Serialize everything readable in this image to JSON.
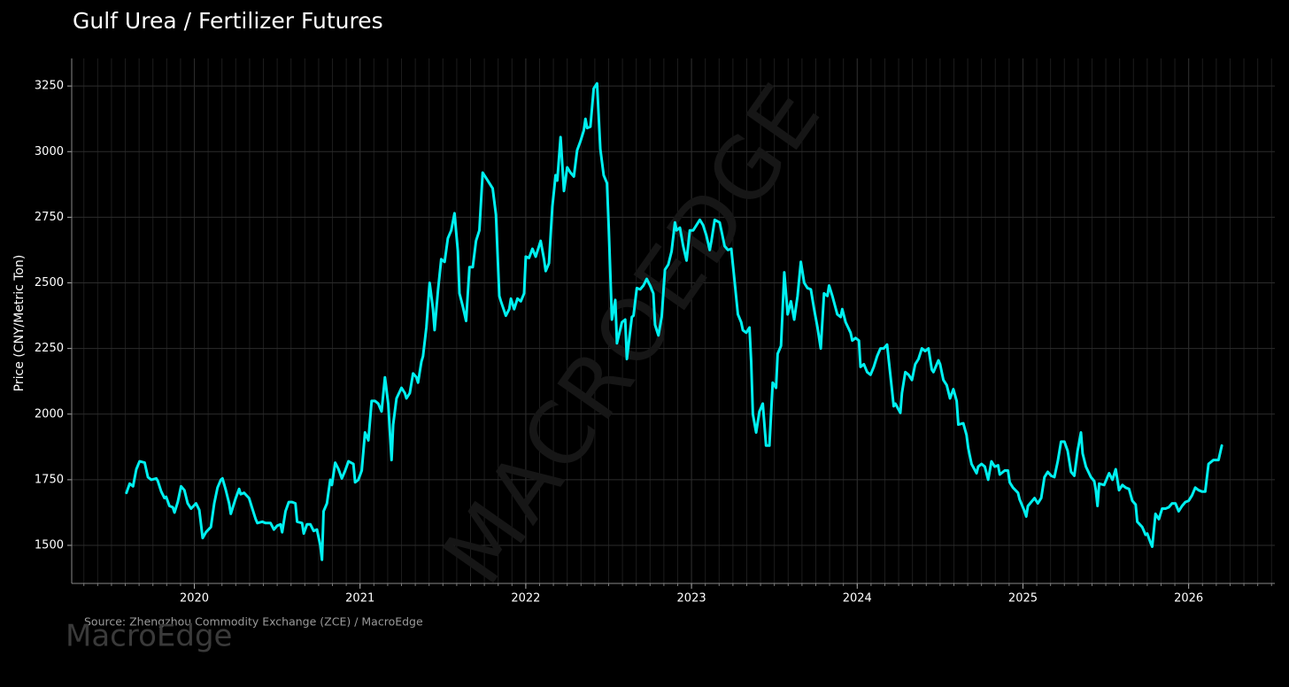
{
  "chart_data": {
    "type": "line",
    "title": "Gulf Urea / Fertilizer Futures",
    "ylabel": "Price (CNY/Metric Ton)",
    "source": "Source: Zhengzhou Commodity Exchange (ZCE) / MacroEdge",
    "brand": "MacroEdge",
    "watermark": "MACROEDGE",
    "xlim": [
      2019.26,
      2026.52
    ],
    "xticks": [
      2020,
      2021,
      2022,
      2023,
      2024,
      2025,
      2026
    ],
    "ylim": [
      1355,
      3355
    ],
    "yticks": [
      1500,
      1750,
      2000,
      2250,
      2500,
      2750,
      3000,
      3250
    ],
    "grid": true,
    "series": [
      {
        "name": "Gulf Urea",
        "color": "#00f0f0",
        "x": [
          2019.59,
          2019.61,
          2019.63,
          2019.65,
          2019.67,
          2019.7,
          2019.72,
          2019.74,
          2019.77,
          2019.78,
          2019.8,
          2019.82,
          2019.83,
          2019.85,
          2019.87,
          2019.88,
          2019.9,
          2019.92,
          2019.94,
          2019.96,
          2019.98,
          2020.01,
          2020.03,
          2020.05,
          2020.07,
          2020.1,
          2020.12,
          2020.14,
          2020.16,
          2020.17,
          2020.19,
          2020.21,
          2020.22,
          2020.25,
          2020.27,
          2020.28,
          2020.3,
          2020.33,
          2020.35,
          2020.37,
          2020.38,
          2020.41,
          2020.43,
          2020.46,
          2020.48,
          2020.5,
          2020.52,
          2020.53,
          2020.55,
          2020.57,
          2020.59,
          2020.61,
          2020.62,
          2020.65,
          2020.66,
          2020.68,
          2020.7,
          2020.72,
          2020.74,
          2020.76,
          2020.77,
          2020.78,
          2020.8,
          2020.82,
          2020.83,
          2020.85,
          2020.87,
          2020.89,
          2020.91,
          2020.93,
          2020.96,
          2020.97,
          2020.99,
          2021.01,
          2021.03,
          2021.05,
          2021.07,
          2021.09,
          2021.11,
          2021.13,
          2021.15,
          2021.17,
          2021.19,
          2021.2,
          2021.22,
          2021.25,
          2021.27,
          2021.28,
          2021.3,
          2021.32,
          2021.34,
          2021.35,
          2021.37,
          2021.38,
          2021.4,
          2021.42,
          2021.44,
          2021.45,
          2021.47,
          2021.49,
          2021.51,
          2021.53,
          2021.55,
          2021.57,
          2021.59,
          2021.6,
          2021.62,
          2021.64,
          2021.66,
          2021.68,
          2021.7,
          2021.72,
          2021.74,
          2021.76,
          2021.78,
          2021.8,
          2021.82,
          2021.84,
          2021.85,
          2021.88,
          2021.9,
          2021.91,
          2021.93,
          2021.95,
          2021.97,
          2021.99,
          2022.0,
          2022.02,
          2022.04,
          2022.06,
          2022.07,
          2022.09,
          2022.11,
          2022.12,
          2022.14,
          2022.16,
          2022.18,
          2022.19,
          2022.21,
          2022.23,
          2022.25,
          2022.27,
          2022.29,
          2022.31,
          2022.33,
          2022.35,
          2022.36,
          2022.37,
          2022.39,
          2022.41,
          2022.43,
          2022.45,
          2022.47,
          2022.49,
          2022.5,
          2022.52,
          2022.54,
          2022.55,
          2022.58,
          2022.6,
          2022.61,
          2022.64,
          2022.65,
          2022.67,
          2022.69,
          2022.71,
          2022.73,
          2022.75,
          2022.77,
          2022.78,
          2022.8,
          2022.82,
          2022.84,
          2022.86,
          2022.88,
          2022.9,
          2022.91,
          2022.93,
          2022.95,
          2022.97,
          2022.99,
          2023.01,
          2023.03,
          2023.05,
          2023.07,
          2023.09,
          2023.11,
          2023.12,
          2023.14,
          2023.17,
          2023.18,
          2023.2,
          2023.22,
          2023.24,
          2023.26,
          2023.28,
          2023.3,
          2023.31,
          2023.33,
          2023.35,
          2023.36,
          2023.37,
          2023.39,
          2023.41,
          2023.43,
          2023.45,
          2023.47,
          2023.49,
          2023.51,
          2023.52,
          2023.54,
          2023.56,
          2023.58,
          2023.6,
          2023.62,
          2023.64,
          2023.66,
          2023.68,
          2023.7,
          2023.72,
          2023.74,
          2023.76,
          2023.78,
          2023.8,
          2023.82,
          2023.83,
          2023.85,
          2023.88,
          2023.9,
          2023.91,
          2023.93,
          2023.96,
          2023.97,
          2023.99,
          2024.01,
          2024.02,
          2024.04,
          2024.06,
          2024.08,
          2024.1,
          2024.12,
          2024.14,
          2024.16,
          2024.18,
          2024.2,
          2024.22,
          2024.23,
          2024.26,
          2024.27,
          2024.29,
          2024.31,
          2024.33,
          2024.35,
          2024.37,
          2024.39,
          2024.41,
          2024.43,
          2024.45,
          2024.46,
          2024.49,
          2024.5,
          2024.52,
          2024.54,
          2024.56,
          2024.58,
          2024.6,
          2024.61,
          2024.64,
          2024.66,
          2024.67,
          2024.69,
          2024.72,
          2024.73,
          2024.75,
          2024.77,
          2024.79,
          2024.81,
          2024.83,
          2024.85,
          2024.86,
          2024.89,
          2024.91,
          2024.92,
          2024.94,
          2024.97,
          2024.98,
          2025.01,
          2025.02,
          2025.03,
          2025.05,
          2025.07,
          2025.09,
          2025.11,
          2025.13,
          2025.15,
          2025.17,
          2025.19,
          2025.21,
          2025.23,
          2025.25,
          2025.27,
          2025.29,
          2025.31,
          2025.33,
          2025.35,
          2025.36,
          2025.38,
          2025.41,
          2025.43,
          2025.44,
          2025.45,
          2025.46,
          2025.49,
          2025.51,
          2025.52,
          2025.54,
          2025.56,
          2025.58,
          2025.6,
          2025.62,
          2025.64,
          2025.66,
          2025.68,
          2025.69,
          2025.72,
          2025.74,
          2025.75,
          2025.77,
          2025.78,
          2025.8,
          2025.82,
          2025.84,
          2025.86,
          2025.88,
          2025.9,
          2025.92,
          2025.94,
          2025.96,
          2025.98,
          2026.0,
          2026.02,
          2026.04,
          2026.06,
          2026.08,
          2026.1,
          2026.12,
          2026.13,
          2026.15,
          2026.18,
          2026.2
        ],
        "values": [
          1700,
          1735,
          1725,
          1790,
          1820,
          1815,
          1760,
          1750,
          1755,
          1745,
          1705,
          1680,
          1685,
          1650,
          1645,
          1625,
          1665,
          1725,
          1710,
          1660,
          1640,
          1660,
          1635,
          1528,
          1550,
          1570,
          1660,
          1720,
          1750,
          1755,
          1710,
          1660,
          1620,
          1680,
          1715,
          1695,
          1700,
          1680,
          1640,
          1600,
          1585,
          1590,
          1585,
          1585,
          1560,
          1575,
          1580,
          1550,
          1630,
          1665,
          1665,
          1660,
          1590,
          1585,
          1545,
          1580,
          1580,
          1555,
          1560,
          1500,
          1445,
          1630,
          1660,
          1750,
          1730,
          1815,
          1790,
          1755,
          1785,
          1820,
          1810,
          1740,
          1750,
          1785,
          1930,
          1900,
          2050,
          2050,
          2040,
          2010,
          2140,
          2040,
          1825,
          1960,
          2060,
          2100,
          2080,
          2060,
          2080,
          2155,
          2140,
          2120,
          2200,
          2220,
          2330,
          2500,
          2400,
          2320,
          2470,
          2590,
          2580,
          2670,
          2700,
          2765,
          2620,
          2460,
          2410,
          2355,
          2560,
          2560,
          2660,
          2700,
          2920,
          2900,
          2880,
          2860,
          2760,
          2450,
          2430,
          2375,
          2400,
          2440,
          2400,
          2440,
          2430,
          2460,
          2600,
          2595,
          2630,
          2600,
          2620,
          2660,
          2590,
          2545,
          2575,
          2790,
          2910,
          2890,
          3055,
          2850,
          2940,
          2920,
          2905,
          3005,
          3040,
          3080,
          3125,
          3090,
          3095,
          3240,
          3260,
          3010,
          2910,
          2880,
          2720,
          2360,
          2435,
          2270,
          2350,
          2360,
          2210,
          2370,
          2375,
          2480,
          2475,
          2490,
          2515,
          2490,
          2460,
          2340,
          2300,
          2370,
          2550,
          2570,
          2620,
          2730,
          2700,
          2710,
          2640,
          2585,
          2700,
          2700,
          2720,
          2740,
          2720,
          2680,
          2625,
          2660,
          2740,
          2730,
          2700,
          2640,
          2625,
          2630,
          2505,
          2380,
          2350,
          2320,
          2310,
          2330,
          2200,
          2000,
          1930,
          2010,
          2040,
          1880,
          1880,
          2120,
          2100,
          2230,
          2260,
          2540,
          2380,
          2430,
          2360,
          2450,
          2580,
          2500,
          2480,
          2475,
          2400,
          2330,
          2250,
          2460,
          2450,
          2490,
          2450,
          2380,
          2370,
          2400,
          2350,
          2310,
          2280,
          2290,
          2280,
          2180,
          2190,
          2160,
          2150,
          2180,
          2220,
          2250,
          2250,
          2265,
          2150,
          2030,
          2040,
          2005,
          2080,
          2160,
          2150,
          2130,
          2190,
          2210,
          2250,
          2240,
          2250,
          2170,
          2160,
          2205,
          2190,
          2130,
          2110,
          2060,
          2095,
          2050,
          1960,
          1965,
          1920,
          1870,
          1810,
          1775,
          1800,
          1810,
          1800,
          1750,
          1820,
          1800,
          1805,
          1770,
          1785,
          1785,
          1740,
          1720,
          1700,
          1675,
          1630,
          1610,
          1650,
          1665,
          1680,
          1660,
          1680,
          1760,
          1780,
          1765,
          1760,
          1820,
          1895,
          1895,
          1860,
          1780,
          1765,
          1860,
          1930,
          1850,
          1800,
          1760,
          1745,
          1710,
          1650,
          1735,
          1730,
          1760,
          1775,
          1750,
          1790,
          1710,
          1730,
          1720,
          1715,
          1670,
          1655,
          1590,
          1570,
          1540,
          1545,
          1510,
          1495,
          1620,
          1600,
          1640,
          1640,
          1645,
          1660,
          1660,
          1630,
          1650,
          1665,
          1670,
          1690,
          1720,
          1710,
          1705,
          1705,
          1810,
          1815,
          1825,
          1825,
          1880
        ]
      }
    ]
  }
}
